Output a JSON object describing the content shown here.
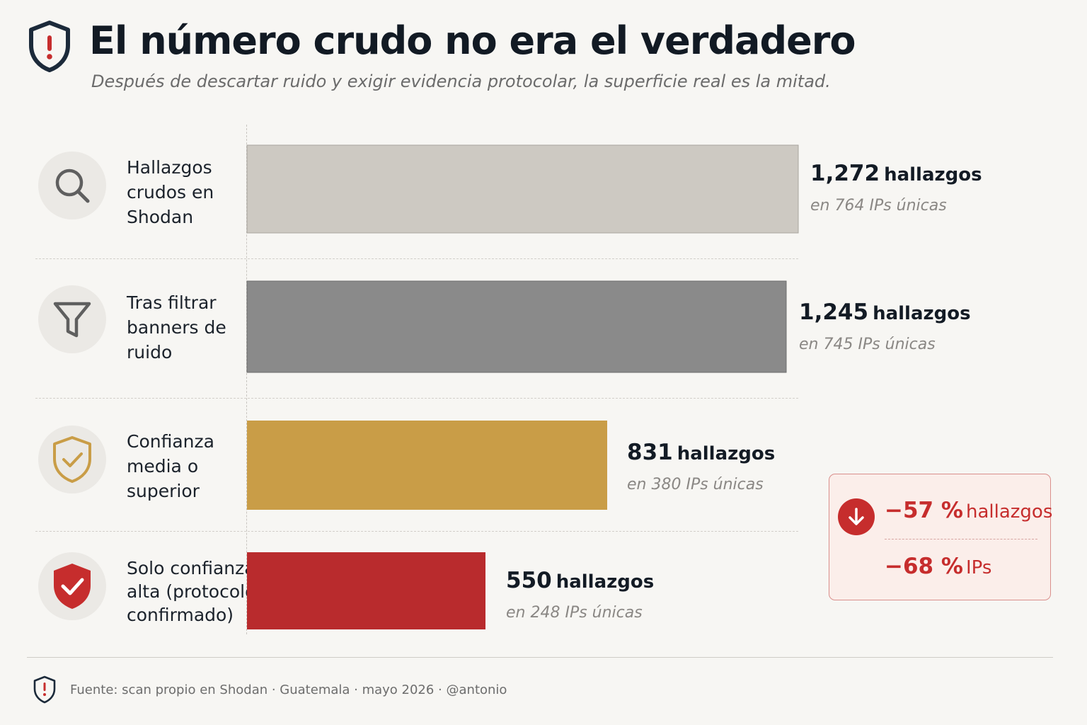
{
  "header": {
    "title": "El número crudo no era el verdadero",
    "subtitle": "Después de descartar ruido y exigir evidencia protocolar, la superficie real es la mitad.",
    "icon": "shield-alert-icon"
  },
  "chart_data": {
    "type": "bar",
    "orientation": "horizontal",
    "categories": [
      "Hallazgos crudos en Shodan",
      "Tras filtrar banners de ruido",
      "Confianza media o superior",
      "Solo confianza alta (protocolo confirmado)"
    ],
    "series": [
      {
        "values": [
          1272,
          1245,
          831,
          550
        ]
      }
    ],
    "unique_ips": [
      764,
      745,
      380,
      248
    ],
    "value_labels": [
      "1,272",
      "1,245",
      "831",
      "550"
    ],
    "value_unit": "hallazgos",
    "sub_labels": [
      "en 764 IPs únicas",
      "en 745 IPs únicas",
      "en 380 IPs únicas",
      "en 248 IPs únicas"
    ],
    "colors": [
      "#cdc9c2",
      "#8a8a8a",
      "#c99d47",
      "#b92b2d"
    ],
    "icons": [
      "search-icon",
      "filter-icon",
      "shield-check-outline-icon",
      "shield-check-filled-icon"
    ],
    "xlim": [
      0,
      1272
    ],
    "grid": false
  },
  "callout": {
    "icon": "arrow-down-circle-icon",
    "line1_num": "−57 %",
    "line1_unit": "hallazgos",
    "line2_num": "−68 %",
    "line2_unit": "IPs",
    "accent": "#c62d2d"
  },
  "footer": {
    "text": "Fuente: scan propio en Shodan · Guatemala · mayo 2026 · @antonio",
    "icon": "shield-logo-icon"
  }
}
